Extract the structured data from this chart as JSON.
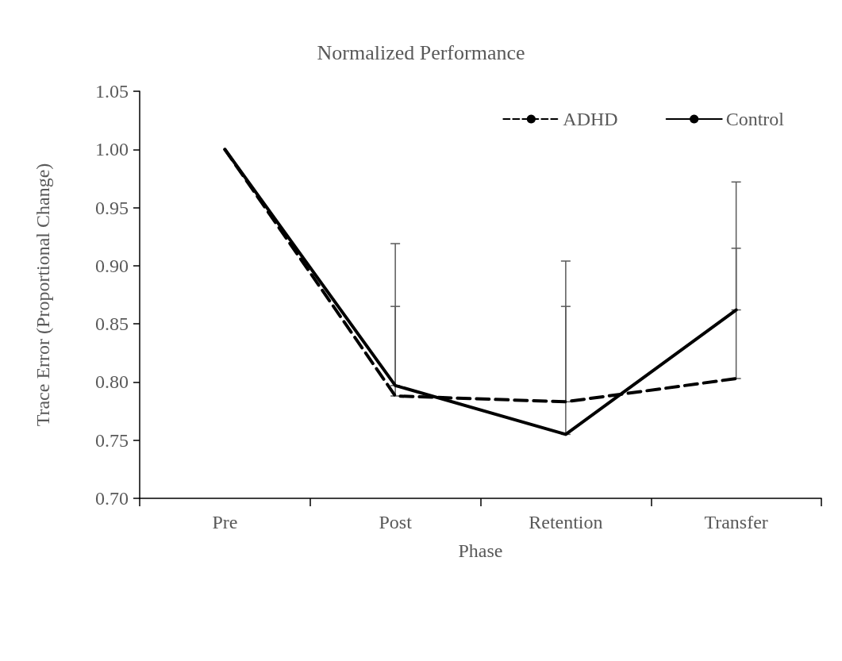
{
  "chart_data": {
    "type": "line",
    "title": "Normalized Performance",
    "xlabel": "Phase",
    "ylabel": "Trace Error (Proportional Change)",
    "categories": [
      "Pre",
      "Post",
      "Retention",
      "Transfer"
    ],
    "series": [
      {
        "name": "ADHD",
        "color": "#000000",
        "line_style": "dashed",
        "values": [
          1.0,
          0.788,
          0.783,
          0.803
        ],
        "errors": [
          null,
          [
            0.788,
            0.865
          ],
          [
            0.783,
            0.865
          ],
          [
            0.803,
            0.915
          ]
        ]
      },
      {
        "name": "Control",
        "color": "#000000",
        "line_style": "solid",
        "values": [
          1.0,
          0.797,
          0.755,
          0.862
        ],
        "errors": [
          null,
          [
            0.797,
            0.919
          ],
          [
            0.755,
            0.904
          ],
          [
            0.862,
            0.972
          ]
        ]
      }
    ],
    "ylim": [
      0.7,
      1.05
    ],
    "yticks": [
      {
        "value": 0.7,
        "label": "0.70"
      },
      {
        "value": 0.75,
        "label": "0.75"
      },
      {
        "value": 0.8,
        "label": "0.80"
      },
      {
        "value": 0.85,
        "label": "0.85"
      },
      {
        "value": 0.9,
        "label": "0.90"
      },
      {
        "value": 0.95,
        "label": "0.95"
      },
      {
        "value": 1.0,
        "label": "1.00"
      },
      {
        "value": 1.05,
        "label": "1.05"
      }
    ],
    "grid": false,
    "legend": "top right",
    "marker": "none"
  }
}
